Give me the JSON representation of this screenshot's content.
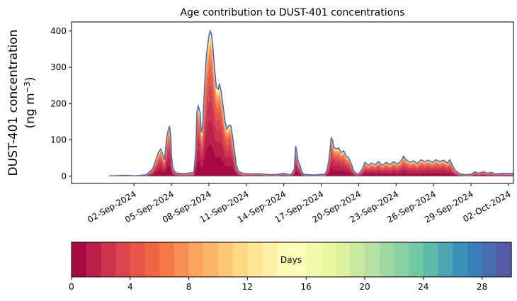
{
  "chart_data": {
    "type": "area",
    "title": "Age contribution to DUST-401 concentrations",
    "ylabel_line1": "DUST-401 concentration",
    "ylabel_line2": "(ng m",
    "ylabel_sup": "−3",
    "ylabel_close": ")",
    "ylim": [
      -20,
      425
    ],
    "xlim_days": [
      -3,
      32.4
    ],
    "x_origin_date": "31-Aug-2024",
    "yticks": [
      0,
      100,
      200,
      300,
      400
    ],
    "xticks": [
      {
        "day": 2,
        "label": "02-Sep-2024"
      },
      {
        "day": 5,
        "label": "05-Sep-2024"
      },
      {
        "day": 8,
        "label": "08-Sep-2024"
      },
      {
        "day": 11,
        "label": "11-Sep-2024"
      },
      {
        "day": 14,
        "label": "14-Sep-2024"
      },
      {
        "day": 17,
        "label": "17-Sep-2024"
      },
      {
        "day": 20,
        "label": "20-Sep-2024"
      },
      {
        "day": 23,
        "label": "23-Sep-2024"
      },
      {
        "day": 26,
        "label": "26-Sep-2024"
      },
      {
        "day": 29,
        "label": "29-Sep-2024"
      },
      {
        "day": 32,
        "label": "02-Oct-2024"
      }
    ],
    "total_series": [
      [
        0.0,
        1
      ],
      [
        0.5,
        1
      ],
      [
        1.0,
        2
      ],
      [
        1.5,
        2
      ],
      [
        2.0,
        1
      ],
      [
        2.5,
        2
      ],
      [
        3.0,
        4
      ],
      [
        3.5,
        20
      ],
      [
        3.8,
        50
      ],
      [
        4.0,
        68
      ],
      [
        4.15,
        75
      ],
      [
        4.3,
        60
      ],
      [
        4.45,
        45
      ],
      [
        4.6,
        100
      ],
      [
        4.75,
        128
      ],
      [
        4.85,
        138
      ],
      [
        4.95,
        110
      ],
      [
        5.0,
        60
      ],
      [
        5.1,
        25
      ],
      [
        5.3,
        10
      ],
      [
        5.6,
        8
      ],
      [
        6.0,
        7
      ],
      [
        6.5,
        9
      ],
      [
        6.8,
        10
      ],
      [
        6.95,
        70
      ],
      [
        7.05,
        178
      ],
      [
        7.15,
        193
      ],
      [
        7.3,
        175
      ],
      [
        7.4,
        120
      ],
      [
        7.5,
        135
      ],
      [
        7.6,
        205
      ],
      [
        7.7,
        275
      ],
      [
        7.8,
        330
      ],
      [
        7.9,
        360
      ],
      [
        8.0,
        385
      ],
      [
        8.1,
        400
      ],
      [
        8.2,
        392
      ],
      [
        8.3,
        365
      ],
      [
        8.45,
        300
      ],
      [
        8.6,
        245
      ],
      [
        8.75,
        240
      ],
      [
        8.85,
        255
      ],
      [
        9.0,
        230
      ],
      [
        9.15,
        190
      ],
      [
        9.3,
        150
      ],
      [
        9.45,
        130
      ],
      [
        9.6,
        140
      ],
      [
        9.75,
        140
      ],
      [
        9.9,
        110
      ],
      [
        10.05,
        70
      ],
      [
        10.2,
        30
      ],
      [
        10.4,
        12
      ],
      [
        10.7,
        8
      ],
      [
        11.0,
        7
      ],
      [
        11.5,
        6
      ],
      [
        12.0,
        7
      ],
      [
        12.5,
        5
      ],
      [
        13.0,
        4
      ],
      [
        13.5,
        5
      ],
      [
        14.0,
        8
      ],
      [
        14.3,
        5
      ],
      [
        14.6,
        4
      ],
      [
        14.85,
        20
      ],
      [
        14.95,
        83
      ],
      [
        15.05,
        65
      ],
      [
        15.15,
        42
      ],
      [
        15.3,
        30
      ],
      [
        15.45,
        12
      ],
      [
        15.6,
        5
      ],
      [
        16.0,
        4
      ],
      [
        16.5,
        3
      ],
      [
        17.0,
        5
      ],
      [
        17.3,
        5
      ],
      [
        17.45,
        15
      ],
      [
        17.6,
        40
      ],
      [
        17.7,
        70
      ],
      [
        17.8,
        105
      ],
      [
        17.9,
        100
      ],
      [
        18.0,
        80
      ],
      [
        18.2,
        75
      ],
      [
        18.4,
        78
      ],
      [
        18.6,
        65
      ],
      [
        18.8,
        70
      ],
      [
        19.0,
        55
      ],
      [
        19.2,
        50
      ],
      [
        19.4,
        35
      ],
      [
        19.6,
        15
      ],
      [
        19.8,
        8
      ],
      [
        20.0,
        6
      ],
      [
        20.3,
        20
      ],
      [
        20.5,
        38
      ],
      [
        20.8,
        30
      ],
      [
        21.0,
        36
      ],
      [
        21.3,
        32
      ],
      [
        21.6,
        40
      ],
      [
        21.9,
        30
      ],
      [
        22.2,
        38
      ],
      [
        22.5,
        32
      ],
      [
        22.8,
        40
      ],
      [
        23.1,
        33
      ],
      [
        23.4,
        42
      ],
      [
        23.6,
        55
      ],
      [
        23.8,
        45
      ],
      [
        24.1,
        38
      ],
      [
        24.4,
        42
      ],
      [
        24.7,
        35
      ],
      [
        25.0,
        45
      ],
      [
        25.3,
        40
      ],
      [
        25.6,
        44
      ],
      [
        25.9,
        38
      ],
      [
        26.2,
        45
      ],
      [
        26.5,
        40
      ],
      [
        26.8,
        44
      ],
      [
        27.1,
        36
      ],
      [
        27.3,
        45
      ],
      [
        27.5,
        30
      ],
      [
        27.7,
        18
      ],
      [
        28.0,
        8
      ],
      [
        28.5,
        4
      ],
      [
        29.0,
        5
      ],
      [
        29.3,
        12
      ],
      [
        29.6,
        8
      ],
      [
        30.0,
        12
      ],
      [
        30.3,
        8
      ],
      [
        30.6,
        10
      ],
      [
        31.0,
        6
      ],
      [
        31.5,
        8
      ],
      [
        32.0,
        7
      ],
      [
        32.4,
        8
      ]
    ],
    "colorbar": {
      "label": "Days",
      "range": [
        0,
        30
      ],
      "bins": 30,
      "ticks": [
        0,
        4,
        8,
        12,
        16,
        20,
        24,
        28
      ],
      "colors": [
        "#9e0142",
        "#d53e4f",
        "#f46d43",
        "#fdae61",
        "#fee08b",
        "#ffffbf",
        "#e6f598",
        "#abdda4",
        "#66c2a5",
        "#3288bd",
        "#5e4fa2"
      ]
    },
    "total_line_color": "#4b6aa8"
  }
}
